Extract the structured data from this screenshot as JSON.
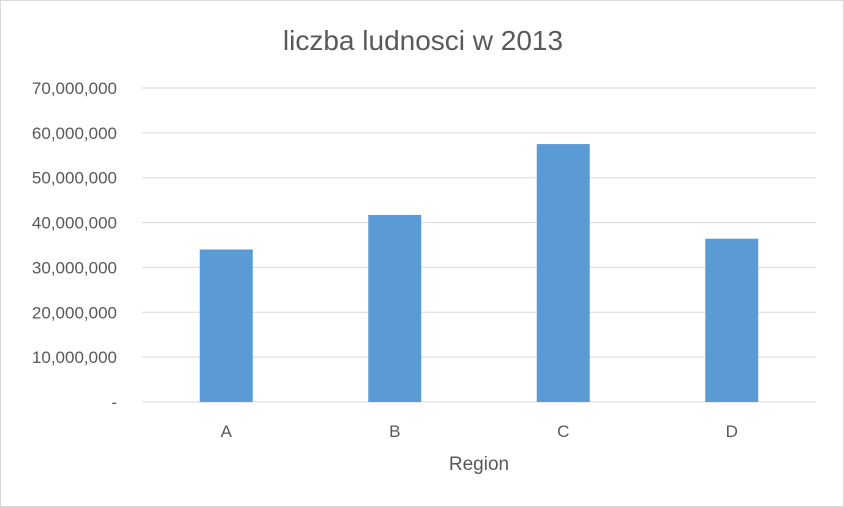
{
  "chart_data": {
    "type": "bar",
    "title": "liczba ludnosci w 2013",
    "xlabel": "Region",
    "ylabel": "",
    "categories": [
      "A",
      "B",
      "C",
      "D"
    ],
    "values": [
      34000000,
      41700000,
      57500000,
      36400000
    ],
    "ylim": [
      0,
      70000000
    ],
    "yticks": [
      0,
      10000000,
      20000000,
      30000000,
      40000000,
      50000000,
      60000000,
      70000000
    ],
    "ytick_labels": [
      "-",
      "10,000,000",
      "20,000,000",
      "30,000,000",
      "40,000,000",
      "50,000,000",
      "60,000,000",
      "70,000,000"
    ],
    "grid": true,
    "legend": "none",
    "colors": {
      "bar": "#5b9bd5",
      "grid": "#d9d9d9",
      "text": "#595959"
    }
  }
}
